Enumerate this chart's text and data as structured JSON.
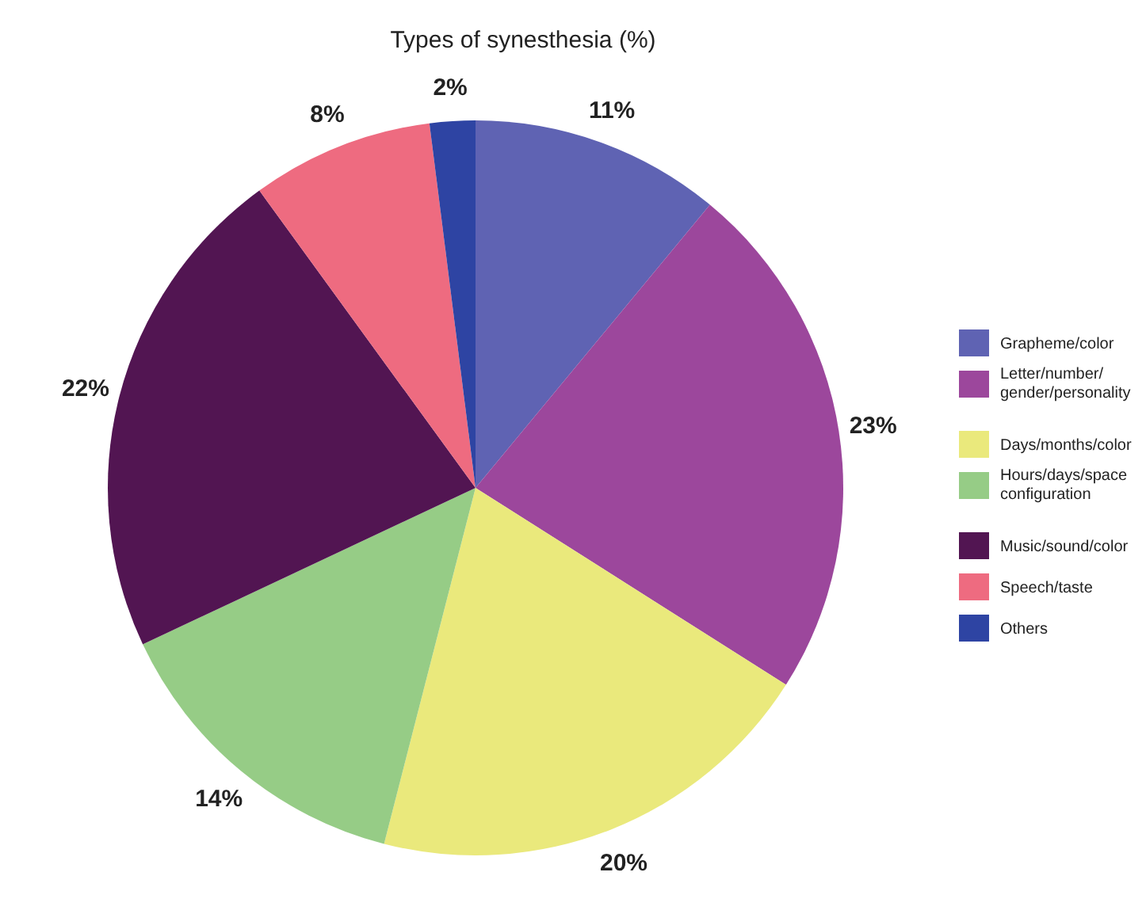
{
  "chart_data": {
    "type": "pie",
    "title": "Types of synesthesia (%)",
    "categories": [
      "Grapheme/color",
      "Letter/number/gender/personality",
      "Days/months/color",
      "Hours/days/space configuration",
      "Music/sound/color",
      "Speech/taste",
      "Others"
    ],
    "values": [
      11,
      23,
      20,
      14,
      22,
      8,
      2
    ],
    "colors": [
      "#5f63b3",
      "#9c479c",
      "#eae97c",
      "#96cc86",
      "#521552",
      "#ee6b80",
      "#2e44a3"
    ],
    "value_labels": [
      "11%",
      "23%",
      "20%",
      "14%",
      "22%",
      "8%",
      "2%"
    ],
    "legend": "right"
  }
}
